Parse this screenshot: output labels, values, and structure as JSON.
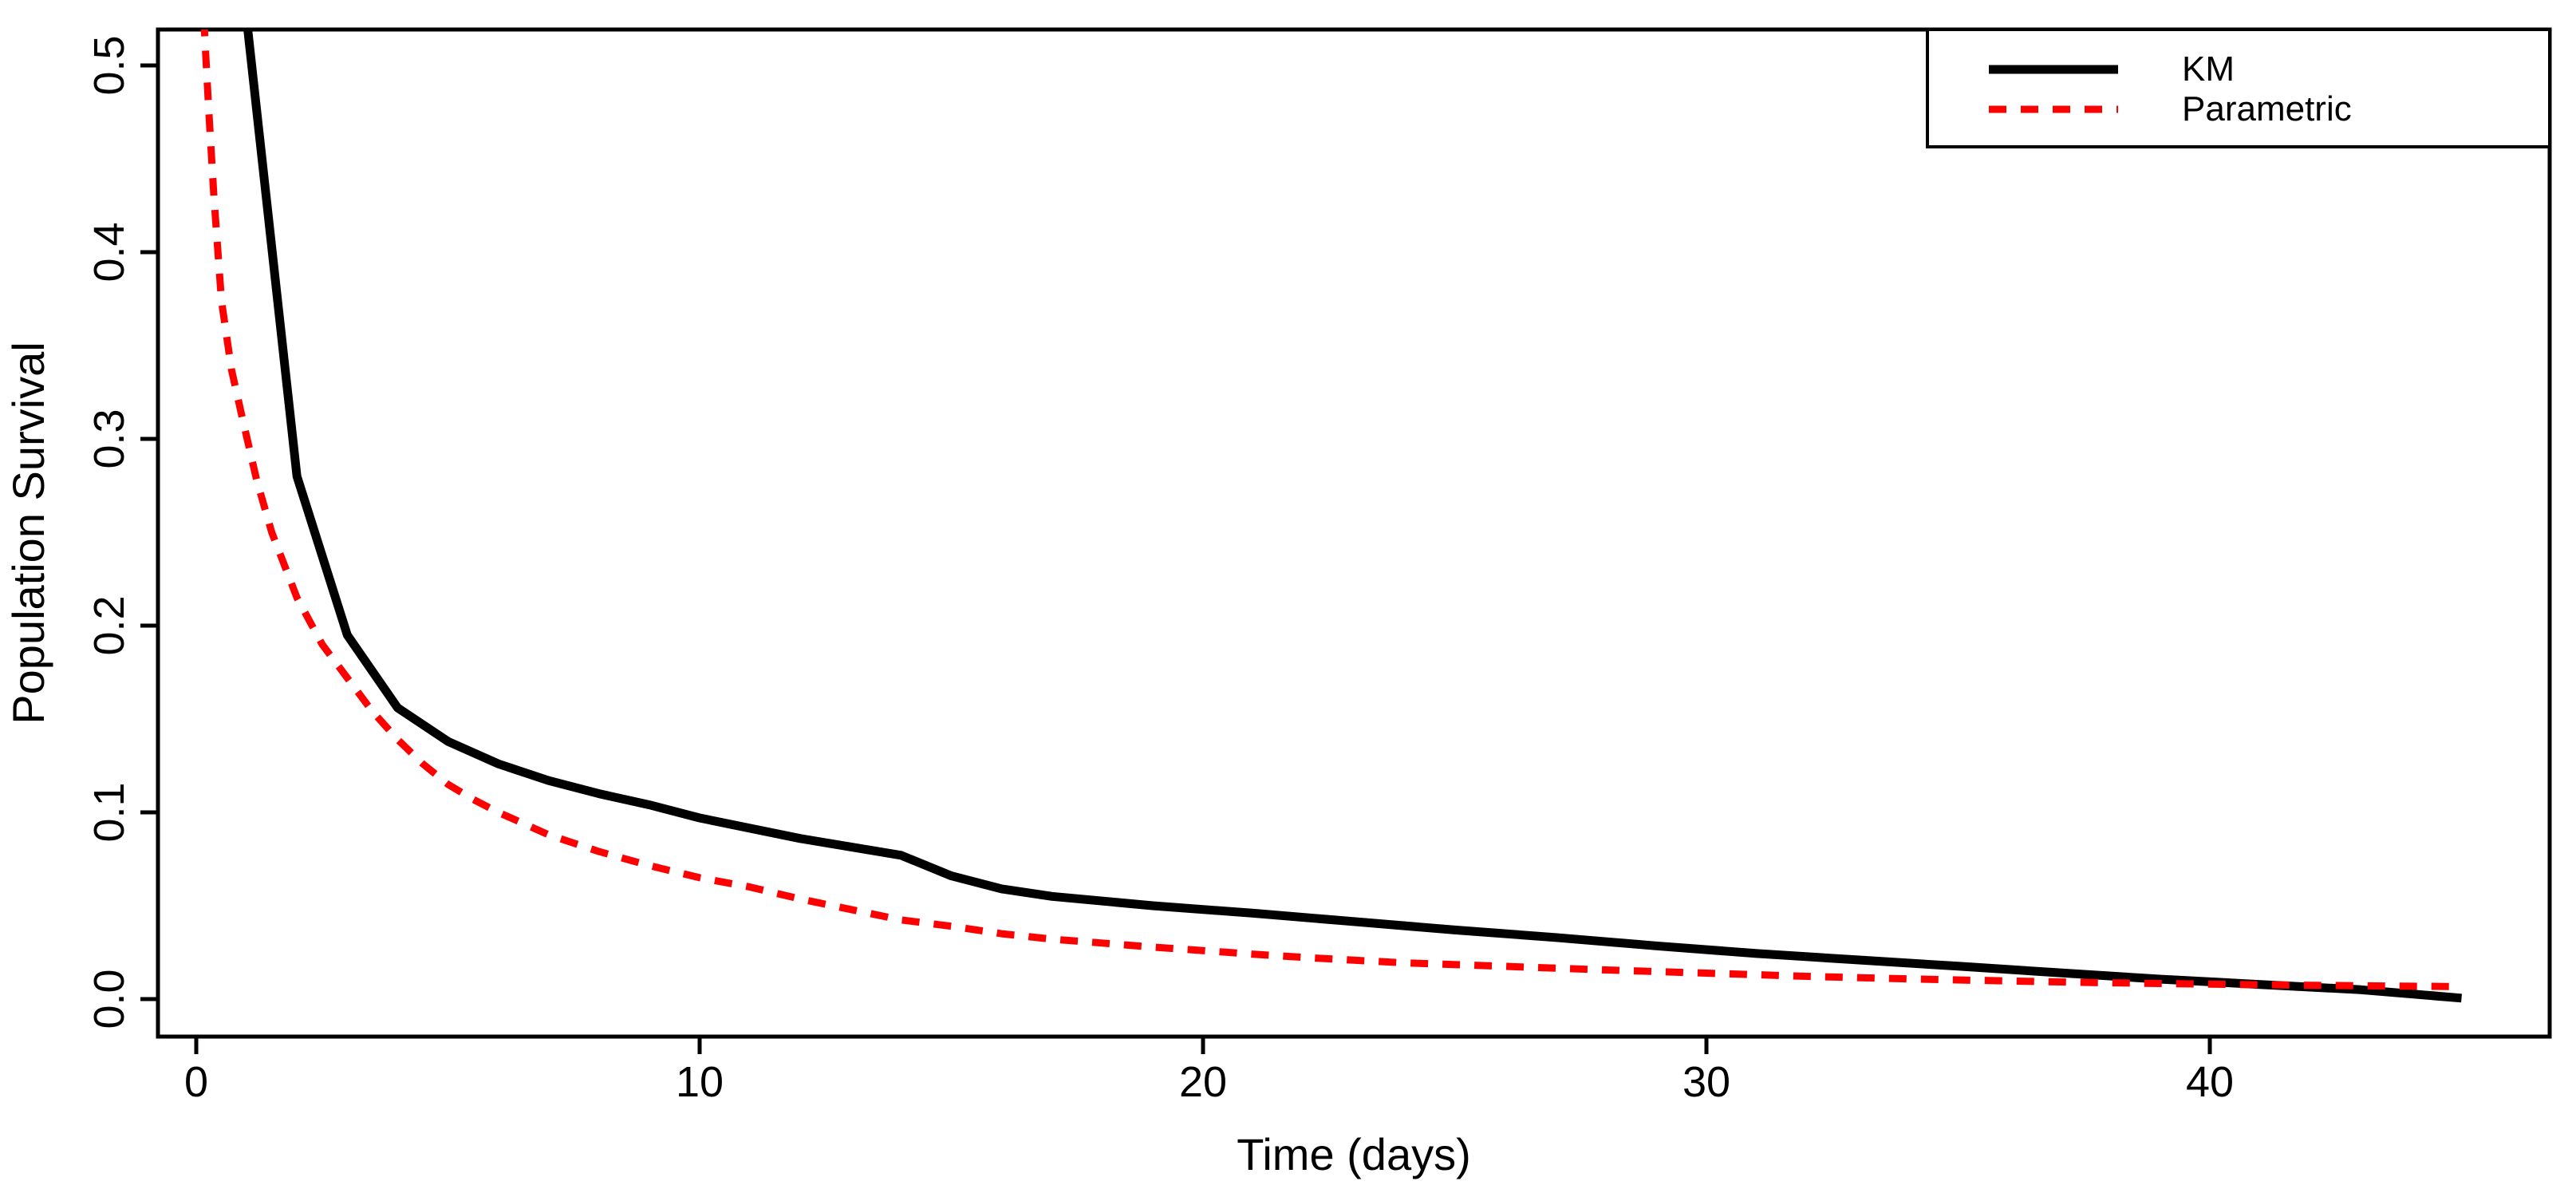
{
  "chart_data": {
    "type": "line",
    "title": "",
    "xlabel": "Time (days)",
    "ylabel": "Population Survival",
    "grid": false,
    "xlim": [
      -0.8,
      46.8
    ],
    "ylim": [
      -0.02,
      0.52
    ],
    "x_ticks": {
      "values": [
        0,
        10,
        20,
        30,
        40
      ],
      "labels": [
        "0",
        "10",
        "20",
        "30",
        "40"
      ]
    },
    "y_ticks": {
      "values": [
        0.0,
        0.1,
        0.2,
        0.3,
        0.4,
        0.5
      ],
      "labels": [
        "0.0",
        "0.1",
        "0.2",
        "0.3",
        "0.4",
        "0.5"
      ]
    },
    "legend": {
      "position": "top-right",
      "entries": [
        {
          "label": "KM",
          "color": "#000000",
          "line_style": "solid"
        },
        {
          "label": "Parametric",
          "color": "#FF0000",
          "line_style": "dashed"
        }
      ]
    },
    "series": [
      {
        "name": "KM",
        "color": "#000000",
        "line_style": "solid",
        "points": [
          [
            1,
            0.525
          ],
          [
            2,
            0.28
          ],
          [
            3,
            0.195
          ],
          [
            4,
            0.156
          ],
          [
            5,
            0.138
          ],
          [
            6,
            0.126
          ],
          [
            7,
            0.117
          ],
          [
            8,
            0.11
          ],
          [
            9,
            0.104
          ],
          [
            10,
            0.097
          ],
          [
            12,
            0.086
          ],
          [
            14,
            0.077
          ],
          [
            15,
            0.066
          ],
          [
            16,
            0.059
          ],
          [
            17,
            0.055
          ],
          [
            19,
            0.05
          ],
          [
            21,
            0.046
          ],
          [
            23,
            0.0415
          ],
          [
            25,
            0.037
          ],
          [
            27,
            0.033
          ],
          [
            29,
            0.0285
          ],
          [
            31,
            0.0244
          ],
          [
            33,
            0.021
          ],
          [
            35,
            0.0176
          ],
          [
            37,
            0.0141
          ],
          [
            39,
            0.0107
          ],
          [
            41,
            0.0078
          ],
          [
            43,
            0.005
          ],
          [
            45,
            0.0005
          ]
        ]
      },
      {
        "name": "Parametric",
        "color": "#FF0000",
        "line_style": "dashed",
        "points": [
          [
            0.15,
            0.525
          ],
          [
            0.2,
            0.5
          ],
          [
            0.25,
            0.475
          ],
          [
            0.35,
            0.43
          ],
          [
            0.5,
            0.374
          ],
          [
            0.7,
            0.337
          ],
          [
            0.9,
            0.313
          ],
          [
            1.2,
            0.278
          ],
          [
            1.5,
            0.25
          ],
          [
            2,
            0.215
          ],
          [
            2.5,
            0.19
          ],
          [
            3,
            0.172
          ],
          [
            3.5,
            0.154
          ],
          [
            4,
            0.139
          ],
          [
            4.5,
            0.126
          ],
          [
            5,
            0.115
          ],
          [
            5.5,
            0.107
          ],
          [
            6,
            0.1
          ],
          [
            6.5,
            0.094
          ],
          [
            7,
            0.088
          ],
          [
            8,
            0.079
          ],
          [
            9,
            0.0715
          ],
          [
            10,
            0.065
          ],
          [
            11,
            0.06
          ],
          [
            12,
            0.0536
          ],
          [
            13,
            0.048
          ],
          [
            14,
            0.0424
          ],
          [
            15,
            0.039
          ],
          [
            16,
            0.035
          ],
          [
            17,
            0.0321
          ],
          [
            18,
            0.03
          ],
          [
            19,
            0.0278
          ],
          [
            20,
            0.026
          ],
          [
            21,
            0.024
          ],
          [
            22,
            0.0223
          ],
          [
            23,
            0.0208
          ],
          [
            24,
            0.0194
          ],
          [
            26,
            0.0175
          ],
          [
            28,
            0.0156
          ],
          [
            30,
            0.0139
          ],
          [
            32,
            0.0122
          ],
          [
            34,
            0.0108
          ],
          [
            36,
            0.0097
          ],
          [
            38,
            0.0087
          ],
          [
            40,
            0.008
          ],
          [
            42,
            0.0074
          ],
          [
            44,
            0.0069
          ],
          [
            45,
            0.0067
          ]
        ]
      }
    ]
  }
}
